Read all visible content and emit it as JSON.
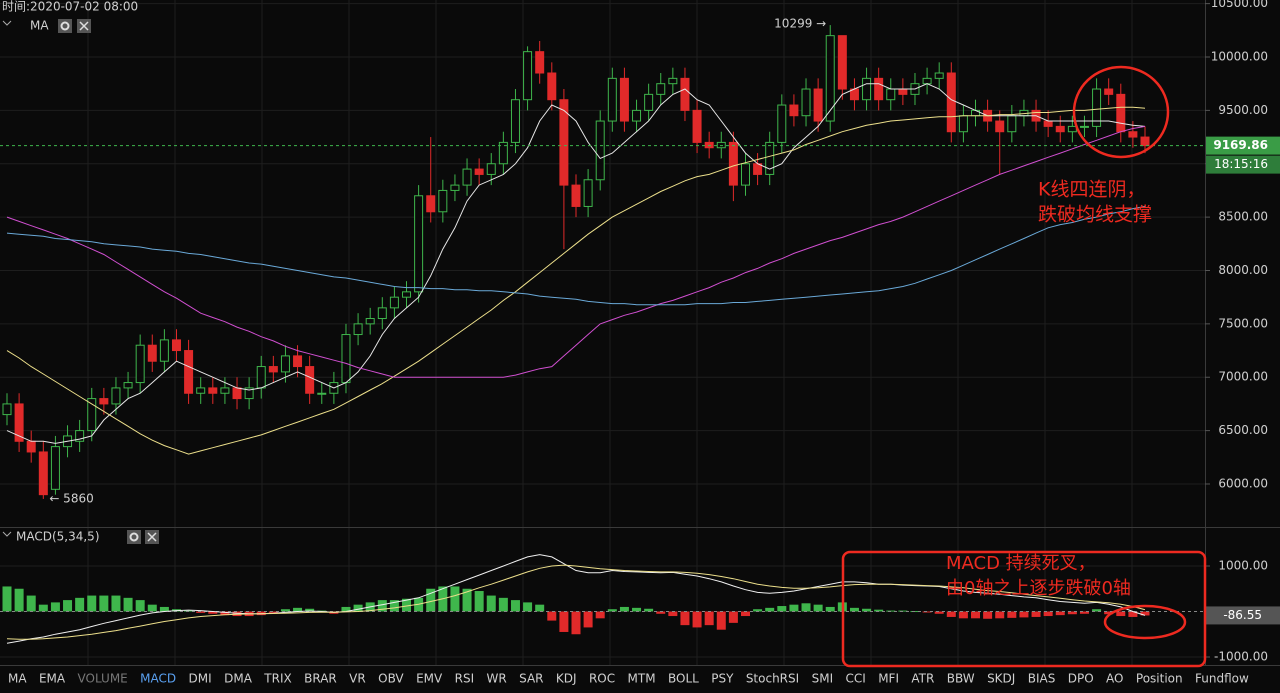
{
  "chart_data": [
    {
      "type": "candlestick",
      "title": "时间:2020-07-02 08:00",
      "indicator": "MA",
      "up_color": "#3fb64c",
      "down_color": "#e12a2a",
      "open": [
        6650,
        6750,
        6400,
        6300,
        5950,
        6350,
        6400,
        6500,
        6800,
        6750,
        6900,
        6950,
        7300,
        7150,
        7350,
        7250,
        6850,
        6900,
        6850,
        6900,
        6800,
        6900,
        7100,
        7050,
        7200,
        7100,
        6850,
        6850,
        6950,
        7400,
        7500,
        7550,
        7650,
        7750,
        7800,
        8700,
        8550,
        8750,
        8800,
        8950,
        8900,
        9000,
        9200,
        9600,
        10050,
        9850,
        9600,
        8800,
        8600,
        8850,
        9400,
        9800,
        9400,
        9500,
        9650,
        9750,
        9800,
        9500,
        9200,
        9150,
        9200,
        8800,
        9000,
        8900,
        9200,
        9550,
        9450,
        9700,
        9400,
        10200,
        9700,
        9600,
        9800,
        9600,
        9700,
        9650,
        9750,
        9800,
        9850,
        9300,
        9450,
        9500,
        9400,
        9300,
        9450,
        9500,
        9400,
        9350,
        9300,
        9350,
        9350,
        9700,
        9650,
        9300,
        9250
      ],
      "high": [
        6850,
        6850,
        6500,
        6400,
        6450,
        6550,
        6600,
        6900,
        6900,
        7000,
        7050,
        7400,
        7400,
        7450,
        7450,
        7350,
        7000,
        7000,
        7000,
        7000,
        7000,
        7200,
        7200,
        7300,
        7300,
        7200,
        6950,
        7050,
        7500,
        7600,
        7650,
        7750,
        7850,
        7900,
        8800,
        9250,
        8850,
        8900,
        9050,
        9050,
        9100,
        9300,
        9700,
        10100,
        10150,
        9950,
        9700,
        8900,
        8950,
        9500,
        9900,
        9900,
        9600,
        9750,
        9850,
        9900,
        9900,
        9600,
        9300,
        9300,
        9300,
        9100,
        9100,
        9300,
        9650,
        9650,
        9800,
        9800,
        10299,
        10200,
        9800,
        9900,
        9900,
        9800,
        9800,
        9850,
        9900,
        9950,
        9950,
        9550,
        9600,
        9600,
        9500,
        9550,
        9600,
        9600,
        9500,
        9450,
        9450,
        9450,
        9800,
        9800,
        9750,
        9400,
        9350
      ],
      "low": [
        6550,
        6300,
        6200,
        5860,
        5900,
        6250,
        6300,
        6400,
        6650,
        6650,
        6800,
        6850,
        7050,
        7050,
        7150,
        6750,
        6750,
        6750,
        6750,
        6700,
        6700,
        6800,
        6950,
        6950,
        7000,
        6750,
        6750,
        6750,
        6850,
        7300,
        7400,
        7450,
        7550,
        7650,
        7700,
        8450,
        8450,
        8650,
        8700,
        8800,
        8800,
        8900,
        9100,
        9500,
        9750,
        9500,
        8200,
        8500,
        8500,
        8750,
        9300,
        9300,
        9300,
        9400,
        9550,
        9650,
        9400,
        9100,
        9050,
        9050,
        8650,
        8700,
        8800,
        8800,
        9100,
        9350,
        9350,
        9300,
        9300,
        9600,
        9500,
        9500,
        9500,
        9500,
        9550,
        9550,
        9650,
        9700,
        9200,
        9200,
        9350,
        9300,
        8900,
        9200,
        9350,
        9300,
        9250,
        9200,
        9200,
        9250,
        9250,
        9550,
        9200,
        9150,
        9100
      ],
      "close": [
        6750,
        6400,
        6300,
        5900,
        6350,
        6450,
        6500,
        6800,
        6750,
        6900,
        6950,
        7300,
        7150,
        7350,
        7250,
        6850,
        6900,
        6850,
        6900,
        6800,
        6900,
        7100,
        7050,
        7200,
        7100,
        6850,
        6850,
        6950,
        7400,
        7500,
        7550,
        7650,
        7750,
        7800,
        8700,
        8550,
        8750,
        8800,
        8950,
        8900,
        9000,
        9200,
        9600,
        10050,
        9850,
        9600,
        8800,
        8600,
        8850,
        9400,
        9800,
        9400,
        9500,
        9650,
        9750,
        9800,
        9500,
        9200,
        9150,
        9200,
        8800,
        9000,
        8900,
        9200,
        9550,
        9450,
        9700,
        9400,
        10200,
        9700,
        9600,
        9800,
        9600,
        9700,
        9650,
        9750,
        9800,
        9850,
        9300,
        9450,
        9500,
        9400,
        9300,
        9450,
        9500,
        9400,
        9350,
        9300,
        9350,
        9350,
        9700,
        9650,
        9300,
        9250,
        9169.86
      ],
      "series": [
        {
          "color": "#e6e6e6",
          "values": [
            6500,
            6450,
            6400,
            6400,
            6380,
            6400,
            6420,
            6450,
            6600,
            6700,
            6800,
            6850,
            6950,
            7050,
            7150,
            7100,
            7050,
            7000,
            6950,
            6900,
            6880,
            6900,
            6950,
            7000,
            7050,
            7000,
            6950,
            6900,
            6950,
            7050,
            7200,
            7400,
            7550,
            7650,
            7750,
            7950,
            8200,
            8400,
            8650,
            8800,
            8850,
            8900,
            9000,
            9150,
            9400,
            9550,
            9500,
            9400,
            9200,
            9050,
            9100,
            9200,
            9300,
            9400,
            9550,
            9650,
            9700,
            9600,
            9550,
            9400,
            9250,
            9100,
            9000,
            8950,
            9000,
            9150,
            9250,
            9350,
            9500,
            9650,
            9700,
            9750,
            9750,
            9700,
            9700,
            9700,
            9750,
            9700,
            9600,
            9550,
            9500,
            9450,
            9450,
            9450,
            9450,
            9450,
            9400,
            9400,
            9400,
            9400,
            9400,
            9400,
            9380,
            9360,
            9350
          ]
        },
        {
          "color": "#ecdf8b",
          "values": [
            7250,
            7180,
            7100,
            7030,
            6960,
            6890,
            6820,
            6750,
            6680,
            6610,
            6540,
            6470,
            6410,
            6360,
            6320,
            6280,
            6310,
            6340,
            6370,
            6400,
            6430,
            6460,
            6500,
            6540,
            6580,
            6620,
            6660,
            6700,
            6760,
            6820,
            6880,
            6940,
            7010,
            7080,
            7150,
            7230,
            7310,
            7390,
            7470,
            7550,
            7630,
            7720,
            7800,
            7890,
            7980,
            8070,
            8160,
            8250,
            8340,
            8420,
            8500,
            8560,
            8620,
            8680,
            8740,
            8790,
            8840,
            8880,
            8900,
            8940,
            8980,
            9010,
            9040,
            9070,
            9100,
            9130,
            9180,
            9220,
            9260,
            9300,
            9330,
            9360,
            9380,
            9400,
            9410,
            9420,
            9430,
            9440,
            9440,
            9450,
            9450,
            9450,
            9460,
            9460,
            9470,
            9480,
            9480,
            9490,
            9500,
            9500,
            9510,
            9520,
            9530,
            9530,
            9520
          ]
        },
        {
          "color": "#d04fd0",
          "values": [
            8500,
            8460,
            8420,
            8380,
            8340,
            8300,
            8250,
            8200,
            8150,
            8080,
            8010,
            7940,
            7870,
            7800,
            7740,
            7670,
            7600,
            7560,
            7520,
            7470,
            7430,
            7380,
            7340,
            7290,
            7250,
            7220,
            7190,
            7160,
            7130,
            7090,
            7060,
            7030,
            7000,
            7000,
            7000,
            7000,
            7000,
            7000,
            7000,
            7000,
            7000,
            7000,
            7020,
            7050,
            7080,
            7100,
            7200,
            7300,
            7400,
            7500,
            7540,
            7580,
            7610,
            7650,
            7690,
            7720,
            7760,
            7800,
            7840,
            7890,
            7930,
            7980,
            8020,
            8070,
            8110,
            8160,
            8200,
            8240,
            8280,
            8310,
            8350,
            8390,
            8430,
            8460,
            8500,
            8550,
            8600,
            8650,
            8700,
            8750,
            8800,
            8850,
            8900,
            8940,
            8980,
            9020,
            9060,
            9100,
            9140,
            9180,
            9220,
            9260,
            9300,
            9330,
            9350
          ]
        },
        {
          "color": "#6aa9d8",
          "values": [
            8350,
            8340,
            8330,
            8320,
            8300,
            8290,
            8280,
            8270,
            8250,
            8240,
            8230,
            8220,
            8200,
            8190,
            8180,
            8160,
            8150,
            8130,
            8110,
            8090,
            8070,
            8060,
            8040,
            8020,
            8000,
            7980,
            7960,
            7940,
            7930,
            7910,
            7890,
            7870,
            7850,
            7840,
            7840,
            7830,
            7830,
            7820,
            7820,
            7810,
            7810,
            7800,
            7790,
            7780,
            7760,
            7750,
            7740,
            7730,
            7710,
            7700,
            7690,
            7690,
            7680,
            7680,
            7680,
            7680,
            7680,
            7690,
            7690,
            7690,
            7700,
            7700,
            7710,
            7720,
            7730,
            7740,
            7750,
            7760,
            7770,
            7780,
            7790,
            7800,
            7810,
            7830,
            7850,
            7880,
            7920,
            7960,
            8000,
            8050,
            8100,
            8150,
            8200,
            8250,
            8300,
            8350,
            8400,
            8430,
            8450,
            8480,
            8500,
            8530,
            8550,
            8580,
            8600
          ]
        }
      ],
      "ylim": [
        5597,
        10534
      ],
      "yticks": [
        {
          "value": 6000,
          "label": "6000.00"
        },
        {
          "value": 6500,
          "label": "6500.00"
        },
        {
          "value": 7000,
          "label": "7000.00"
        },
        {
          "value": 7500,
          "label": "7500.00"
        },
        {
          "value": 8000,
          "label": "8000.00"
        },
        {
          "value": 8500,
          "label": "8500.00"
        },
        {
          "value": 9000,
          "label": "9000.00"
        },
        {
          "value": 9500,
          "label": "9500.00"
        },
        {
          "value": 10000,
          "label": "10000.00"
        },
        {
          "value": 10500,
          "label": "10500.00"
        }
      ],
      "grid": true,
      "countdown": "18:15:16",
      "high_label": "10299 →",
      "low_label": "← 5860",
      "notes": [
        "K线四连阴，",
        "跌破均线支撑"
      ]
    },
    {
      "type": "macd",
      "title": "MACD(5,34,5)",
      "up_color": "#3fb64c",
      "down_color": "#e12a2a",
      "histogram": [
        550,
        500,
        350,
        150,
        200,
        250,
        300,
        350,
        350,
        350,
        300,
        250,
        150,
        100,
        50,
        20,
        -30,
        -50,
        -80,
        -100,
        -100,
        -80,
        -30,
        50,
        80,
        60,
        20,
        -50,
        100,
        150,
        200,
        250,
        250,
        280,
        300,
        500,
        550,
        550,
        500,
        450,
        350,
        300,
        250,
        200,
        150,
        -200,
        -450,
        -500,
        -350,
        -150,
        50,
        100,
        80,
        60,
        -50,
        -100,
        -300,
        -350,
        -300,
        -400,
        -250,
        -100,
        50,
        80,
        120,
        150,
        180,
        150,
        100,
        200,
        80,
        60,
        40,
        20,
        20,
        10,
        -20,
        -50,
        -120,
        -150,
        -150,
        -160,
        -150,
        -140,
        -130,
        -120,
        -100,
        -80,
        -60,
        -50,
        50,
        -60,
        -100,
        -120,
        -87
      ],
      "series": [
        {
          "color": "#f0f0f0",
          "values": [
            -700,
            -650,
            -600,
            -560,
            -500,
            -450,
            -400,
            -330,
            -260,
            -200,
            -140,
            -80,
            -30,
            0,
            20,
            30,
            20,
            0,
            -20,
            -40,
            -50,
            -50,
            -40,
            -20,
            0,
            10,
            0,
            -20,
            0,
            50,
            100,
            150,
            200,
            250,
            300,
            400,
            500,
            600,
            700,
            800,
            900,
            1000,
            1100,
            1200,
            1250,
            1200,
            1050,
            900,
            850,
            850,
            900,
            880,
            870,
            860,
            850,
            860,
            820,
            780,
            720,
            650,
            560,
            480,
            420,
            400,
            420,
            450,
            500,
            550,
            600,
            650,
            650,
            630,
            600,
            600,
            580,
            570,
            560,
            550,
            500,
            450,
            420,
            400,
            380,
            350,
            320,
            300,
            260,
            220,
            200,
            180,
            200,
            160,
            100,
            0,
            -86.55
          ]
        },
        {
          "color": "#ecdf8b",
          "values": [
            -600,
            -610,
            -610,
            -600,
            -580,
            -560,
            -530,
            -500,
            -460,
            -420,
            -370,
            -320,
            -270,
            -220,
            -180,
            -140,
            -110,
            -90,
            -70,
            -60,
            -55,
            -50,
            -45,
            -40,
            -30,
            -20,
            -15,
            -15,
            -10,
            0,
            20,
            50,
            80,
            120,
            160,
            220,
            280,
            350,
            430,
            520,
            600,
            690,
            780,
            870,
            950,
            1000,
            1020,
            1000,
            970,
            940,
            920,
            900,
            890,
            880,
            870,
            870,
            860,
            840,
            810,
            770,
            720,
            660,
            600,
            560,
            530,
            510,
            510,
            520,
            540,
            570,
            590,
            600,
            600,
            600,
            590,
            580,
            570,
            560,
            540,
            520,
            490,
            460,
            440,
            410,
            380,
            350,
            320,
            290,
            260,
            230,
            210,
            190,
            160,
            110,
            40
          ]
        }
      ],
      "ylim": [
        -1176,
        1835
      ],
      "yticks": [
        {
          "value": 1000,
          "label": "1000.00"
        },
        {
          "value": -1000,
          "label": "-1000.00"
        }
      ],
      "notes": [
        "MACD 持续死叉，",
        "由0轴之上逐步跌破0轴"
      ]
    }
  ],
  "tabs": {
    "items": [
      "MA",
      "EMA",
      "VOLUME",
      "MACD",
      "DMI",
      "DMA",
      "TRIX",
      "BRAR",
      "VR",
      "OBV",
      "EMV",
      "RSI",
      "WR",
      "SAR",
      "KDJ",
      "ROC",
      "MTM",
      "BOLL",
      "PSY",
      "StochRSI",
      "SMI",
      "CCI",
      "MFI",
      "ATR",
      "BBW",
      "SKDJ",
      "BIAS",
      "DPO",
      "AO",
      "Position",
      "Fundflow"
    ],
    "active": "MACD",
    "disabled": "VOLUME"
  }
}
